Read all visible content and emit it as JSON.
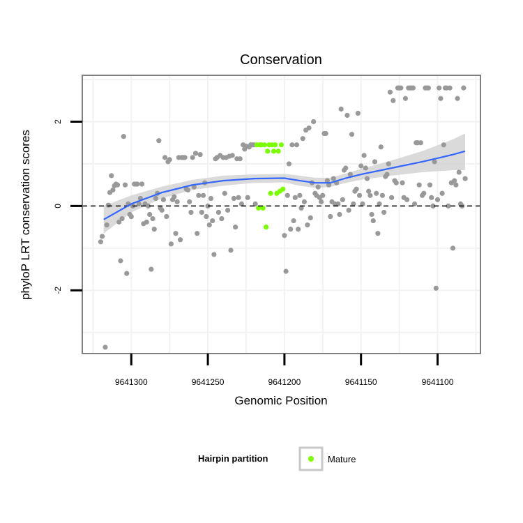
{
  "chart_data": {
    "type": "scatter",
    "title": "Conservation",
    "xlabel": "Genomic Position",
    "ylabel": "phyloP LRT conservation scores",
    "x_reversed": true,
    "xlim": [
      9641072,
      9641332
    ],
    "ylim": [
      -3.5,
      3.1
    ],
    "x_ticks": [
      9641300,
      9641250,
      9641200,
      9641150,
      9641100
    ],
    "x_tick_labels": [
      "9641300",
      "9641250",
      "9641200",
      "9641150",
      "9641100"
    ],
    "y_ticks": [
      -2,
      0,
      2
    ],
    "y_tick_labels": [
      "-2",
      "0",
      "2"
    ],
    "reference_line": {
      "y": 0,
      "style": "dashed",
      "color": "#000000"
    },
    "grid": true,
    "legend": {
      "title": "Hairpin partition",
      "placement": "bottom",
      "entries": [
        {
          "label": "Mature",
          "color": "#7cfc00"
        }
      ]
    },
    "colors": {
      "other_points": "#999999",
      "mature_points": "#7cfc00",
      "smooth_line": "#3366ff",
      "ribbon": "#d3d3d3",
      "panel_border": "#7f7f7f",
      "grid": "#f2f2f2"
    },
    "series": [
      {
        "points": [
          [
            9641317,
            -3.35
          ],
          [
            9641320,
            -0.85
          ],
          [
            9641319,
            -0.72
          ],
          [
            9641316,
            -0.45
          ],
          [
            9641315,
            0.02
          ],
          [
            9641314,
            0.32
          ],
          [
            9641313,
            0.72
          ],
          [
            9641312,
            0.38
          ],
          [
            9641311,
            0.48
          ],
          [
            9641310,
            0.52
          ],
          [
            9641309,
            0.5
          ],
          [
            9641308,
            -0.38
          ],
          [
            9641307,
            -1.3
          ],
          [
            9641306,
            -0.3
          ],
          [
            9641305,
            1.65
          ],
          [
            9641304,
            0.5
          ],
          [
            9641303,
            -1.6
          ],
          [
            9641302,
            0.05
          ],
          [
            9641301,
            -0.2
          ],
          [
            9641300,
            -0.25
          ],
          [
            9641299,
            0.0
          ],
          [
            9641298,
            0.52
          ],
          [
            9641297,
            0.52
          ],
          [
            9641296,
            0.52
          ],
          [
            9641295,
            0.05
          ],
          [
            9641294,
            0.18
          ],
          [
            9641293,
            0.52
          ],
          [
            9641292,
            -0.42
          ],
          [
            9641291,
            0.05
          ],
          [
            9641290,
            -0.38
          ],
          [
            9641289,
            0.0
          ],
          [
            9641288,
            -0.2
          ],
          [
            9641287,
            -1.5
          ],
          [
            9641286,
            -0.3
          ],
          [
            9641285,
            -0.55
          ],
          [
            9641284,
            0.18
          ],
          [
            9641283,
            0.3
          ],
          [
            9641282,
            1.55
          ],
          [
            9641281,
            -0.05
          ],
          [
            9641280,
            -0.1
          ],
          [
            9641279,
            0.15
          ],
          [
            9641278,
            1.15
          ],
          [
            9641277,
            -0.25
          ],
          [
            9641276,
            1.05
          ],
          [
            9641275,
            1.1
          ],
          [
            9641274,
            -0.9
          ],
          [
            9641273,
            0.15
          ],
          [
            9641272,
            0.22
          ],
          [
            9641271,
            -0.65
          ],
          [
            9641270,
            0.1
          ],
          [
            9641269,
            1.15
          ],
          [
            9641268,
            -0.8
          ],
          [
            9641267,
            1.15
          ],
          [
            9641266,
            1.15
          ],
          [
            9641265,
            1.15
          ],
          [
            9641264,
            0.4
          ],
          [
            9641263,
            0.38
          ],
          [
            9641262,
            0.1
          ],
          [
            9641261,
            -0.15
          ],
          [
            9641260,
            1.15
          ],
          [
            9641259,
            0.45
          ],
          [
            9641258,
            1.25
          ],
          [
            9641257,
            -0.65
          ],
          [
            9641256,
            0.25
          ],
          [
            9641255,
            1.22
          ],
          [
            9641254,
            -0.15
          ],
          [
            9641253,
            0.25
          ],
          [
            9641252,
            0.55
          ],
          [
            9641251,
            -0.25
          ],
          [
            9641250,
            0.0
          ],
          [
            9641249,
            -0.45
          ],
          [
            9641248,
            0.18
          ],
          [
            9641247,
            -0.35
          ],
          [
            9641246,
            -1.15
          ],
          [
            9641245,
            1.12
          ],
          [
            9641244,
            1.15
          ],
          [
            9641243,
            -0.15
          ],
          [
            9641242,
            1.2
          ],
          [
            9641241,
            -0.3
          ],
          [
            9641240,
            1.15
          ],
          [
            9641239,
            0.3
          ],
          [
            9641238,
            1.15
          ],
          [
            9641237,
            -0.1
          ],
          [
            9641236,
            1.18
          ],
          [
            9641235,
            -1.05
          ],
          [
            9641234,
            1.2
          ],
          [
            9641233,
            0.18
          ],
          [
            9641232,
            -0.5
          ],
          [
            9641231,
            1.12
          ],
          [
            9641230,
            0.2
          ],
          [
            9641229,
            1.12
          ],
          [
            9641228,
            0.05
          ],
          [
            9641227,
            1.45
          ],
          [
            9641226,
            1.35
          ],
          [
            9641225,
            1.42
          ],
          [
            9641224,
            0.2
          ],
          [
            9641223,
            1.4
          ],
          [
            9641222,
            1.45
          ],
          [
            9641221,
            1.45
          ],
          [
            9641220,
            1.45
          ],
          [
            9641219,
            0.05
          ],
          [
            9641200,
            -0.7
          ],
          [
            9641199,
            -1.55
          ],
          [
            9641198,
            0.25
          ],
          [
            9641197,
            1.0
          ],
          [
            9641196,
            -0.55
          ],
          [
            9641195,
            1.45
          ],
          [
            9641194,
            -0.35
          ],
          [
            9641193,
            0.2
          ],
          [
            9641192,
            1.45
          ],
          [
            9641191,
            -0.55
          ],
          [
            9641190,
            0.25
          ],
          [
            9641189,
            -0.05
          ],
          [
            9641188,
            1.6
          ],
          [
            9641187,
            0.1
          ],
          [
            9641186,
            1.8
          ],
          [
            9641185,
            -0.45
          ],
          [
            9641184,
            1.85
          ],
          [
            9641183,
            -0.28
          ],
          [
            9641182,
            0.55
          ],
          [
            9641181,
            2.0
          ],
          [
            9641180,
            0.3
          ],
          [
            9641179,
            0.25
          ],
          [
            9641178,
            0.45
          ],
          [
            9641177,
            0.2
          ],
          [
            9641176,
            0.1
          ],
          [
            9641175,
            0.25
          ],
          [
            9641174,
            1.72
          ],
          [
            9641173,
            1.72
          ],
          [
            9641172,
            0.6
          ],
          [
            9641171,
            0.5
          ],
          [
            9641170,
            -0.25
          ],
          [
            9641169,
            0.1
          ],
          [
            9641168,
            0.65
          ],
          [
            9641167,
            0.05
          ],
          [
            9641166,
            0.55
          ],
          [
            9641165,
            0.05
          ],
          [
            9641164,
            -0.2
          ],
          [
            9641163,
            2.3
          ],
          [
            9641162,
            0.15
          ],
          [
            9641161,
            0.85
          ],
          [
            9641160,
            0.9
          ],
          [
            9641159,
            2.15
          ],
          [
            9641158,
            -0.1
          ],
          [
            9641157,
            0.75
          ],
          [
            9641156,
            1.7
          ],
          [
            9641155,
            0.05
          ],
          [
            9641154,
            0.35
          ],
          [
            9641153,
            0.4
          ],
          [
            9641152,
            2.2
          ],
          [
            9641151,
            0.25
          ],
          [
            9641150,
            0.95
          ],
          [
            9641149,
            0.05
          ],
          [
            9641148,
            1.2
          ],
          [
            9641147,
            0.9
          ],
          [
            9641146,
            0.65
          ],
          [
            9641145,
            0.35
          ],
          [
            9641144,
            0.25
          ],
          [
            9641143,
            -0.2
          ],
          [
            9641142,
            -0.35
          ],
          [
            9641141,
            1.05
          ],
          [
            9641140,
            0.3
          ],
          [
            9641139,
            -0.65
          ],
          [
            9641138,
            0.05
          ],
          [
            9641137,
            1.4
          ],
          [
            9641136,
            0.25
          ],
          [
            9641135,
            -0.15
          ],
          [
            9641134,
            0.7
          ],
          [
            9641133,
            0.75
          ],
          [
            9641132,
            1.0
          ],
          [
            9641131,
            2.7
          ],
          [
            9641130,
            0.2
          ],
          [
            9641129,
            2.5
          ],
          [
            9641128,
            0.6
          ],
          [
            9641127,
            0.55
          ],
          [
            9641126,
            2.8
          ],
          [
            9641125,
            2.8
          ],
          [
            9641124,
            2.8
          ],
          [
            9641123,
            0.55
          ],
          [
            9641122,
            0.2
          ],
          [
            9641121,
            2.55
          ],
          [
            9641120,
            0.15
          ],
          [
            9641119,
            2.8
          ],
          [
            9641118,
            2.8
          ],
          [
            9641117,
            2.8
          ],
          [
            9641116,
            2.8
          ],
          [
            9641115,
            0.05
          ],
          [
            9641114,
            1.5
          ],
          [
            9641113,
            1.5
          ],
          [
            9641112,
            0.5
          ],
          [
            9641111,
            1.5
          ],
          [
            9641110,
            0.25
          ],
          [
            9641109,
            0.3
          ],
          [
            9641108,
            2.8
          ],
          [
            9641107,
            2.8
          ],
          [
            9641106,
            2.8
          ],
          [
            9641105,
            0.5
          ],
          [
            9641104,
            0.2
          ],
          [
            9641103,
            0.0
          ],
          [
            9641102,
            1.05
          ],
          [
            9641101,
            -1.95
          ],
          [
            9641100,
            0.15
          ],
          [
            9641099,
            2.8
          ],
          [
            9641098,
            2.55
          ],
          [
            9641097,
            0.3
          ],
          [
            9641096,
            1.45
          ],
          [
            9641095,
            2.8
          ],
          [
            9641094,
            2.8
          ],
          [
            9641093,
            0.0
          ],
          [
            9641092,
            2.8
          ],
          [
            9641091,
            0.55
          ],
          [
            9641090,
            -1.0
          ],
          [
            9641089,
            0.6
          ],
          [
            9641088,
            0.5
          ],
          [
            9641087,
            2.55
          ],
          [
            9641086,
            0.8
          ],
          [
            9641085,
            0.05
          ],
          [
            9641084,
            0.0
          ],
          [
            9641083,
            2.8
          ],
          [
            9641082,
            0.65
          ]
        ]
      },
      {
        "name": "Mature",
        "points": [
          [
            9641218,
            1.45
          ],
          [
            9641217,
            -0.05
          ],
          [
            9641216,
            1.45
          ],
          [
            9641215,
            1.45
          ],
          [
            9641214,
            -0.05
          ],
          [
            9641213,
            1.45
          ],
          [
            9641212,
            -0.5
          ],
          [
            9641211,
            1.3
          ],
          [
            9641210,
            1.45
          ],
          [
            9641209,
            0.3
          ],
          [
            9641208,
            1.45
          ],
          [
            9641207,
            1.3
          ],
          [
            9641206,
            1.45
          ],
          [
            9641205,
            0.3
          ],
          [
            9641204,
            1.3
          ],
          [
            9641203,
            0.35
          ],
          [
            9641202,
            1.45
          ],
          [
            9641201,
            0.4
          ]
        ]
      }
    ],
    "smooth": {
      "x": [
        9641318,
        9641300,
        9641280,
        9641260,
        9641240,
        9641220,
        9641200,
        9641190,
        9641180,
        9641170,
        9641160,
        9641150,
        9641130,
        9641110,
        9641090,
        9641082
      ],
      "y": [
        -0.32,
        0.05,
        0.32,
        0.5,
        0.6,
        0.65,
        0.66,
        0.6,
        0.55,
        0.55,
        0.66,
        0.75,
        0.9,
        1.05,
        1.22,
        1.3
      ],
      "lower": [
        -0.65,
        -0.15,
        0.18,
        0.38,
        0.48,
        0.55,
        0.56,
        0.48,
        0.43,
        0.45,
        0.55,
        0.62,
        0.72,
        0.8,
        0.85,
        0.85
      ],
      "upper": [
        0.0,
        0.25,
        0.46,
        0.62,
        0.72,
        0.75,
        0.76,
        0.72,
        0.67,
        0.67,
        0.77,
        0.88,
        1.08,
        1.3,
        1.58,
        1.72
      ]
    }
  }
}
